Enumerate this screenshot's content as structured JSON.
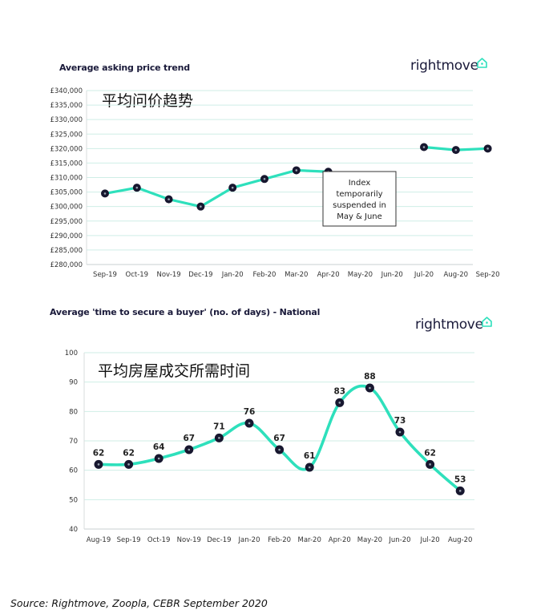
{
  "brand": {
    "logo_text": "rightmove",
    "icon": "house-icon",
    "accent": "#2ee0bc",
    "dark": "#17172f",
    "grid": "#cfeee6"
  },
  "chart_data": [
    {
      "type": "line",
      "title": "Average asking price trend",
      "annotation": "平均问价趋势",
      "categories": [
        "Sep-19",
        "Oct-19",
        "Nov-19",
        "Dec-19",
        "Jan-20",
        "Feb-20",
        "Mar-20",
        "Apr-20",
        "May-20",
        "Jun-20",
        "Jul-20",
        "Aug-20",
        "Sep-20"
      ],
      "values": [
        304500,
        306500,
        302500,
        300000,
        306500,
        309500,
        312500,
        312000,
        null,
        null,
        320500,
        319500,
        320000
      ],
      "y_ticks": [
        280000,
        285000,
        290000,
        295000,
        300000,
        305000,
        310000,
        315000,
        320000,
        325000,
        330000,
        335000,
        340000
      ],
      "y_tick_labels": [
        "£280,000",
        "£285,000",
        "£290,000",
        "£295,000",
        "£300,000",
        "£305,000",
        "£310,000",
        "£315,000",
        "£320,000",
        "£325,000",
        "£330,000",
        "£335,000",
        "£340,000"
      ],
      "ylim": [
        280000,
        340000
      ],
      "note_lines": [
        "Index",
        "temporarily",
        "suspended in",
        "May & June"
      ],
      "point_labels": false
    },
    {
      "type": "line",
      "title": "Average 'time to secure a buyer' (no. of days) - National",
      "annotation": "平均房屋成交所需时间",
      "categories": [
        "Aug-19",
        "Sep-19",
        "Oct-19",
        "Nov-19",
        "Dec-19",
        "Jan-20",
        "Feb-20",
        "Mar-20",
        "Apr-20",
        "May-20",
        "Jun-20",
        "Jul-20",
        "Aug-20"
      ],
      "values": [
        62,
        62,
        64,
        67,
        71,
        76,
        67,
        61,
        83,
        88,
        73,
        62,
        53
      ],
      "y_ticks": [
        40,
        50,
        60,
        70,
        80,
        90,
        100
      ],
      "y_tick_labels": [
        "40",
        "50",
        "60",
        "70",
        "80",
        "90",
        "100"
      ],
      "ylim": [
        40,
        100
      ],
      "point_labels": true
    }
  ],
  "source": "Source: Rightmove, Zoopla, CEBR September 2020"
}
